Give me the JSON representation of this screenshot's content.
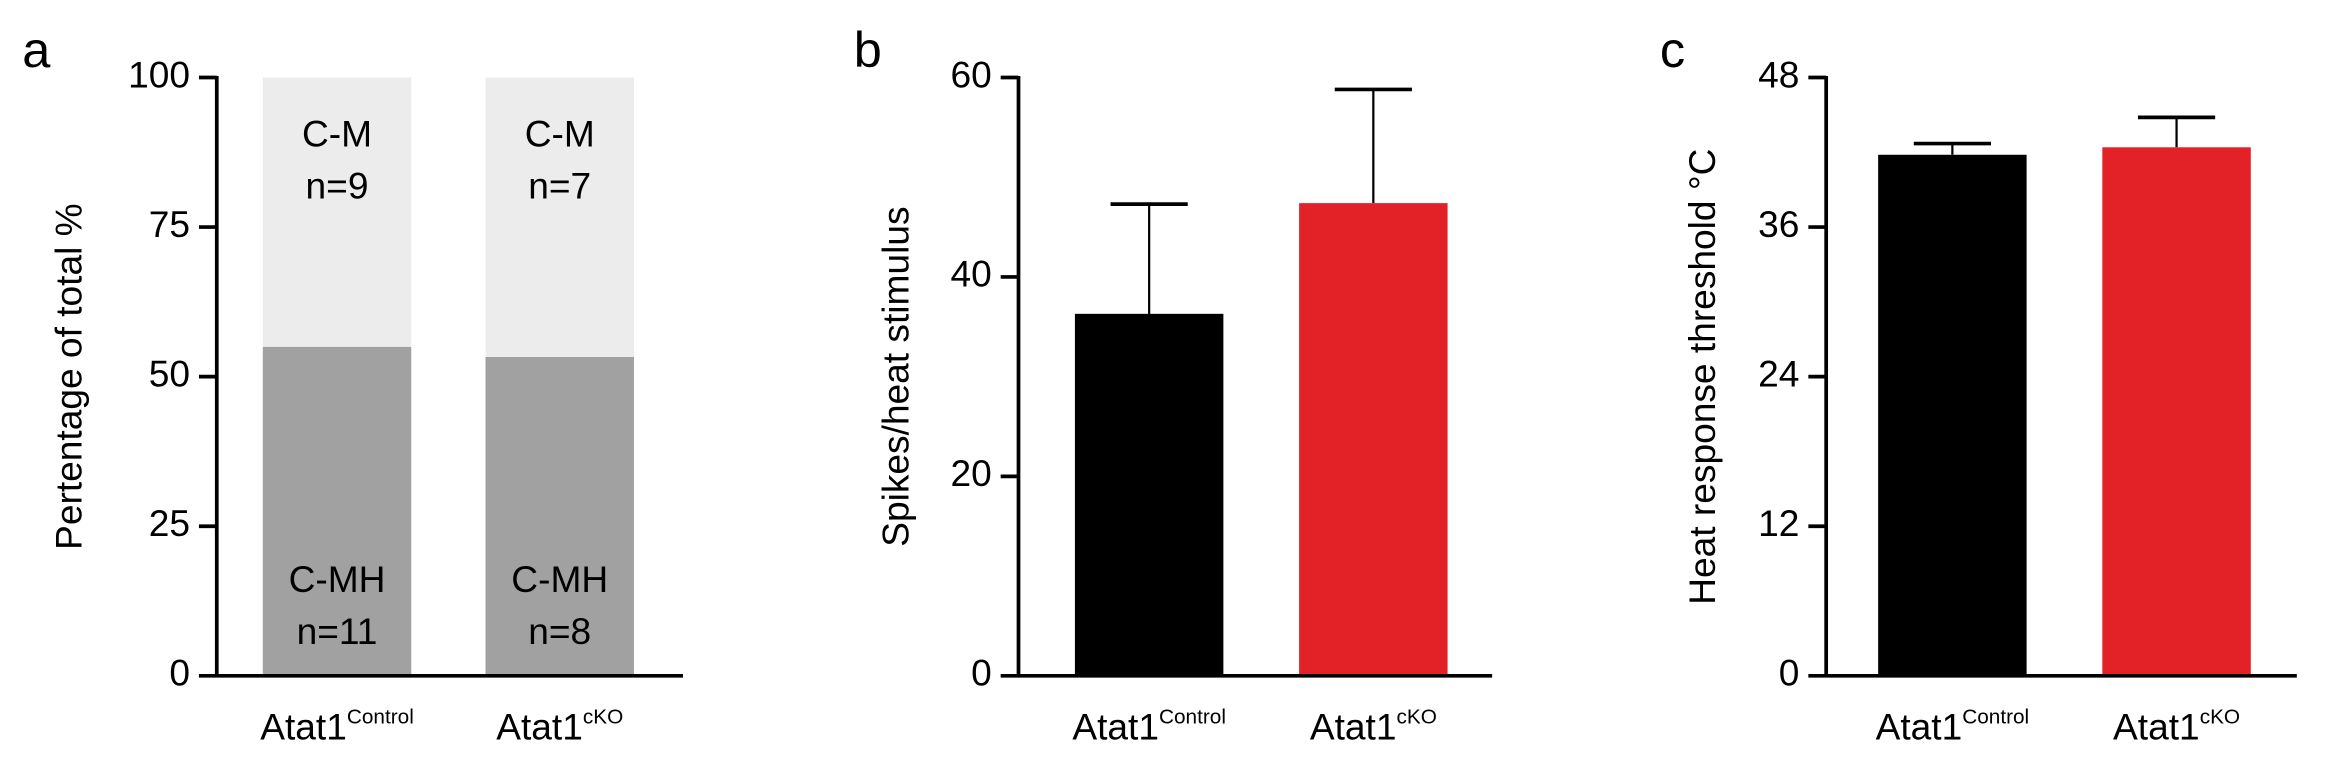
{
  "chart_data": [
    {
      "type": "stacked_bar",
      "panel_label": "a",
      "ylabel": "Pertentage of total  %",
      "categories": [
        {
          "text": "Atat1",
          "superscript": "Control"
        },
        {
          "text": "Atat1",
          "superscript": "cKO"
        }
      ],
      "series": [
        {
          "name": "C-MH",
          "color": "#a0a1a0",
          "values": [
            55,
            53.3
          ],
          "counts": [
            "n=11",
            "n=8"
          ]
        },
        {
          "name": "C-M",
          "color": "#ebeceb",
          "values": [
            45,
            46.7
          ],
          "counts": [
            "n=9",
            "n=7"
          ]
        }
      ],
      "ylim": [
        0,
        100
      ],
      "yticks": [
        0,
        25,
        50,
        75,
        100
      ]
    },
    {
      "type": "bar",
      "panel_label": "b",
      "ylabel": "Spikes/heat stimulus",
      "categories": [
        {
          "text": "Atat1",
          "superscript": "Control"
        },
        {
          "text": "Atat1",
          "superscript": "cKO"
        }
      ],
      "values": [
        36.3,
        47.4
      ],
      "errors": [
        11.0,
        11.4
      ],
      "colors": [
        "#000000",
        "#e32227"
      ],
      "ylim": [
        0,
        60
      ],
      "yticks": [
        0,
        20,
        40,
        60
      ]
    },
    {
      "type": "bar",
      "panel_label": "c",
      "ylabel": "Heat response threshold °C",
      "categories": [
        {
          "text": "Atat1",
          "superscript": "Control"
        },
        {
          "text": "Atat1",
          "superscript": "cKO"
        }
      ],
      "values": [
        41.8,
        42.4
      ],
      "errors": [
        0.9,
        2.4
      ],
      "colors": [
        "#000000",
        "#e32227"
      ],
      "ylim": [
        0,
        48
      ],
      "yticks": [
        0,
        12,
        24,
        36,
        48
      ]
    }
  ]
}
